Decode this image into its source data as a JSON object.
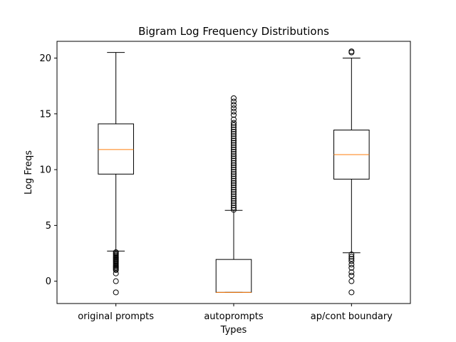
{
  "chart_data": {
    "type": "box",
    "title": "Bigram Log Frequency Distributions",
    "xlabel": "Types",
    "ylabel": "Log Freqs",
    "ylim": [
      -2.0,
      21.5
    ],
    "yticks": [
      0,
      5,
      10,
      15,
      20
    ],
    "grid": false,
    "categories": [
      "original prompts",
      "autoprompts",
      "ap/cont boundary"
    ],
    "series": [
      {
        "category": "original prompts",
        "whisker_low": 2.7,
        "q1": 9.6,
        "median": 11.8,
        "q3": 14.1,
        "whisker_high": 20.5,
        "outliers": [
          2.6,
          2.5,
          2.4,
          2.3,
          2.2,
          2.1,
          2.0,
          1.9,
          1.8,
          1.7,
          1.6,
          1.5,
          1.4,
          1.3,
          1.2,
          1.1,
          1.0,
          0.7,
          0.0,
          -1.0
        ]
      },
      {
        "category": "autoprompts",
        "whisker_low": -1.0,
        "q1": -1.0,
        "median": -1.0,
        "q3": 1.95,
        "whisker_high": 6.35,
        "outliers": [
          6.4,
          6.6,
          6.8,
          7.0,
          7.2,
          7.4,
          7.6,
          7.8,
          8.0,
          8.2,
          8.4,
          8.6,
          8.8,
          9.0,
          9.2,
          9.4,
          9.6,
          9.8,
          10.0,
          10.2,
          10.4,
          10.6,
          10.8,
          11.0,
          11.2,
          11.4,
          11.6,
          11.8,
          12.0,
          12.2,
          12.4,
          12.6,
          12.8,
          13.0,
          13.2,
          13.4,
          13.6,
          13.8,
          14.0,
          14.2,
          14.5,
          14.9,
          15.2,
          15.5,
          15.8,
          16.1,
          16.4
        ]
      },
      {
        "category": "ap/cont boundary",
        "whisker_low": 2.55,
        "q1": 9.15,
        "median": 11.35,
        "q3": 13.55,
        "whisker_high": 20.0,
        "outliers": [
          20.5,
          20.6,
          2.4,
          2.2,
          2.0,
          1.8,
          1.5,
          1.2,
          0.8,
          0.5,
          0.0,
          -1.0
        ]
      }
    ],
    "colors": {
      "box": "#000000",
      "median": "#ff7f0e",
      "outlier": "#000000"
    }
  }
}
